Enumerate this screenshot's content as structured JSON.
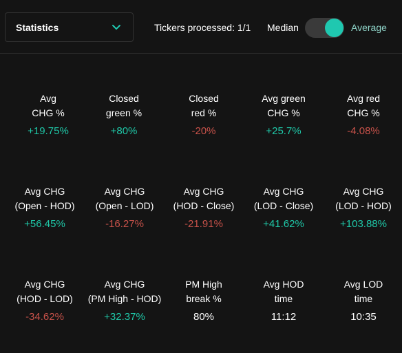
{
  "header": {
    "dropdown_label": "Statistics",
    "tickers_processed": "Tickers processed: 1/1",
    "toggle_left_label": "Median",
    "toggle_right_label": "Average",
    "toggle_state": "Average"
  },
  "colors": {
    "accent": "#1fc8b0",
    "positive": "#1fc8a8",
    "negative": "#c8524a",
    "background": "#141414"
  },
  "stats": [
    {
      "line1": "Avg",
      "line2": "CHG %",
      "value": "+19.75%",
      "tone": "pos"
    },
    {
      "line1": "Closed",
      "line2": "green %",
      "value": "+80%",
      "tone": "pos"
    },
    {
      "line1": "Closed",
      "line2": "red %",
      "value": "-20%",
      "tone": "neg"
    },
    {
      "line1": "Avg green",
      "line2": "CHG %",
      "value": "+25.7%",
      "tone": "pos"
    },
    {
      "line1": "Avg red",
      "line2": "CHG %",
      "value": "-4.08%",
      "tone": "neg"
    },
    {
      "line1": "Avg CHG",
      "line2": "(Open - HOD)",
      "value": "+56.45%",
      "tone": "pos"
    },
    {
      "line1": "Avg CHG",
      "line2": "(Open - LOD)",
      "value": "-16.27%",
      "tone": "neg"
    },
    {
      "line1": "Avg CHG",
      "line2": "(HOD - Close)",
      "value": "-21.91%",
      "tone": "neg"
    },
    {
      "line1": "Avg CHG",
      "line2": "(LOD - Close)",
      "value": "+41.62%",
      "tone": "pos"
    },
    {
      "line1": "Avg CHG",
      "line2": "(LOD - HOD)",
      "value": "+103.88%",
      "tone": "pos"
    },
    {
      "line1": "Avg CHG",
      "line2": "(HOD - LOD)",
      "value": "-34.62%",
      "tone": "neg"
    },
    {
      "line1": "Avg CHG",
      "line2": "(PM High - HOD)",
      "value": "+32.37%",
      "tone": "pos"
    },
    {
      "line1": "PM High",
      "line2": "break %",
      "value": "80%",
      "tone": "neu"
    },
    {
      "line1": "Avg HOD",
      "line2": "time",
      "value": "11:12",
      "tone": "neu"
    },
    {
      "line1": "Avg LOD",
      "line2": "time",
      "value": "10:35",
      "tone": "neu"
    }
  ]
}
